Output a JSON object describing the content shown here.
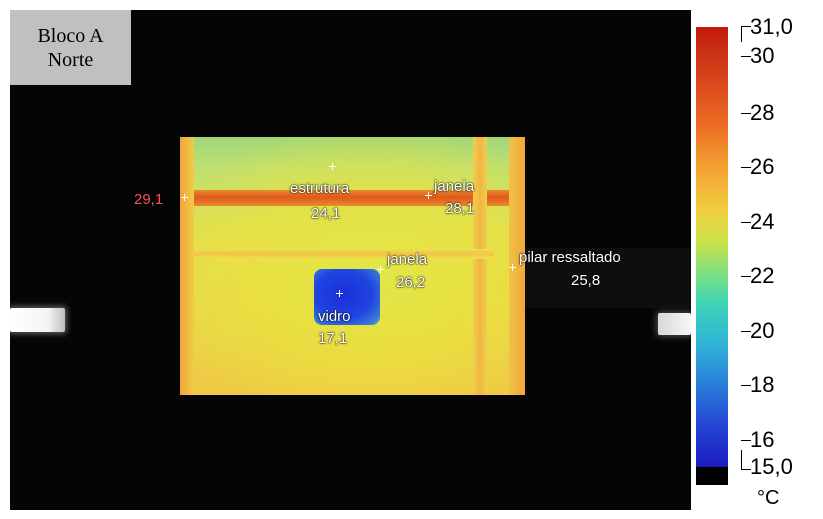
{
  "badge": {
    "line1": "Bloco A",
    "line2": "Norte"
  },
  "measurements": [
    {
      "name": "edge",
      "value": "29,1"
    },
    {
      "name": "estrutura",
      "label": "estrutura",
      "value": "24,1"
    },
    {
      "name": "janela-top",
      "label": "janela",
      "value": "28,1"
    },
    {
      "name": "janela-mid",
      "label": "janela",
      "value": "26,2"
    },
    {
      "name": "vidro",
      "label": "vidro",
      "value": "17,1"
    },
    {
      "name": "pilar",
      "label": "pilar ressaltado",
      "value": "25,8"
    }
  ],
  "scale": {
    "max": "31,0",
    "min": "15,0",
    "ticks": [
      "30",
      "28",
      "26",
      "24",
      "22",
      "20",
      "18",
      "16"
    ],
    "unit": "°C"
  },
  "colors": {
    "hot": "#c4190f",
    "cold": "#1c1cc0",
    "edge_label": "#ff5050"
  }
}
